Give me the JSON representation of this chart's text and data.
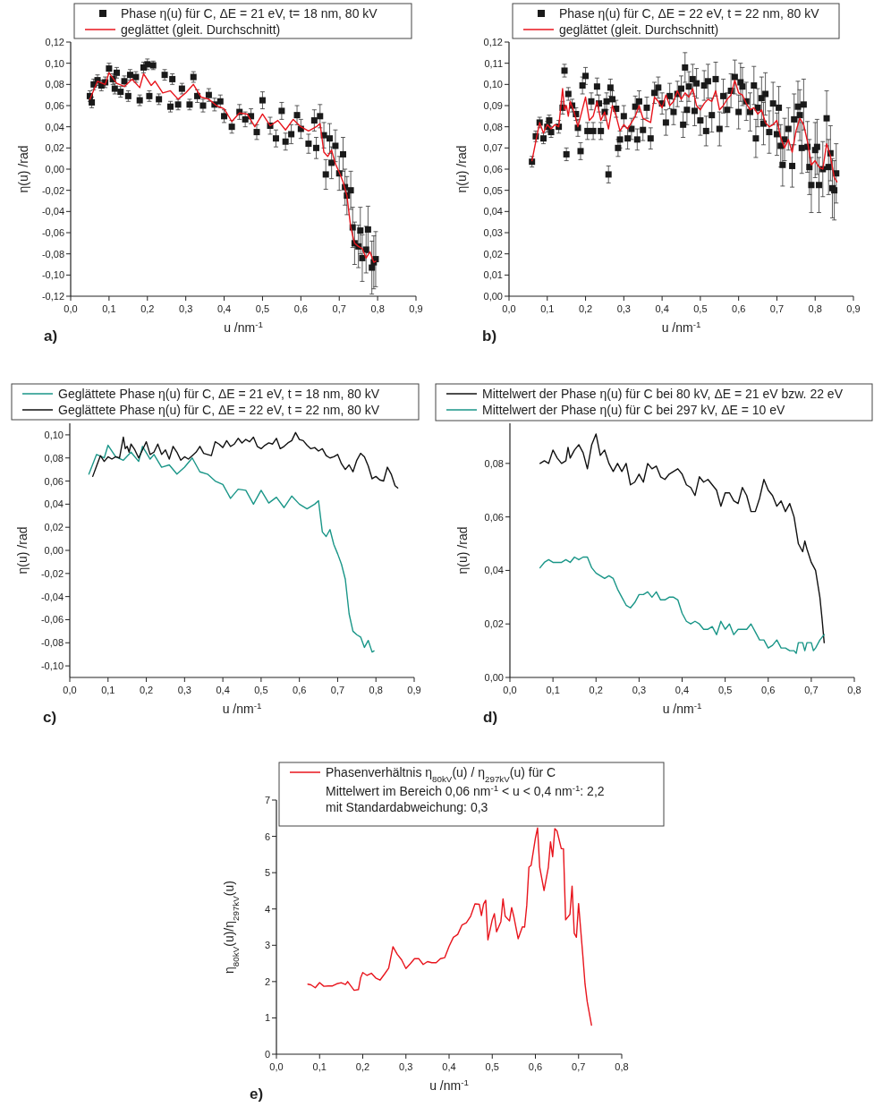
{
  "chart_data": [
    {
      "type": "scatter",
      "xlabel": "u /nm$^{-1}$",
      "ylabel": "η(u) /rad",
      "legend": "top",
      "annotations": [
        "a)"
      ],
      "xlim": [
        0,
        0.9
      ],
      "ylim": [
        -0.12,
        0.12
      ],
      "xticks": [
        {
          "value": 0,
          "label": "0,0"
        },
        {
          "value": 0.1,
          "label": "0,1"
        },
        {
          "value": 0.2,
          "label": "0,2"
        },
        {
          "value": 0.3,
          "label": "0,3"
        },
        {
          "value": 0.4,
          "label": "0,4"
        },
        {
          "value": 0.5,
          "label": "0,5"
        },
        {
          "value": 0.6,
          "label": "0,6"
        },
        {
          "value": 0.7,
          "label": "0,7"
        },
        {
          "value": 0.8,
          "label": "0,8"
        },
        {
          "value": 0.9,
          "label": "0,9"
        }
      ],
      "yticks": [
        {
          "value": -0.12,
          "label": "-0,12"
        },
        {
          "value": -0.1,
          "label": "-0,10"
        },
        {
          "value": -0.08,
          "label": "-0,08"
        },
        {
          "value": -0.06,
          "label": "-0,06"
        },
        {
          "value": -0.04,
          "label": "-0,04"
        },
        {
          "value": -0.02,
          "label": "-0,02"
        },
        {
          "value": 0,
          "label": "0,00"
        },
        {
          "value": 0.02,
          "label": "0,02"
        },
        {
          "value": 0.04,
          "label": "0,04"
        },
        {
          "value": 0.06,
          "label": "0,06"
        },
        {
          "value": 0.08,
          "label": "0,08"
        },
        {
          "value": 0.1,
          "label": "0,10"
        },
        {
          "value": 0.12,
          "label": "0,12"
        }
      ],
      "series": [
        {
          "name": "Phase η(u) für C, ΔE = 21 eV, t= 18 nm, 80 kV",
          "color": "#1a1a1a",
          "type": "scatter",
          "marker": "square",
          "x": [
            0.05,
            0.055,
            0.06,
            0.07,
            0.08,
            0.09,
            0.1,
            0.11,
            0.115,
            0.12,
            0.13,
            0.14,
            0.15,
            0.155,
            0.17,
            0.18,
            0.19,
            0.2,
            0.205,
            0.215,
            0.23,
            0.245,
            0.26,
            0.265,
            0.28,
            0.29,
            0.31,
            0.32,
            0.33,
            0.345,
            0.36,
            0.375,
            0.39,
            0.4,
            0.42,
            0.44,
            0.455,
            0.47,
            0.485,
            0.5,
            0.52,
            0.535,
            0.55,
            0.56,
            0.575,
            0.59,
            0.6,
            0.62,
            0.635,
            0.64,
            0.65,
            0.66,
            0.665,
            0.675,
            0.68,
            0.69,
            0.7,
            0.71,
            0.715,
            0.72,
            0.73,
            0.735,
            0.74,
            0.75,
            0.755,
            0.76,
            0.77,
            0.775,
            0.785,
            0.79,
            0.795
          ],
          "values": [
            0.069,
            0.063,
            0.08,
            0.084,
            0.079,
            0.082,
            0.095,
            0.085,
            0.076,
            0.091,
            0.073,
            0.083,
            0.069,
            0.089,
            0.087,
            0.065,
            0.096,
            0.099,
            0.069,
            0.098,
            0.066,
            0.089,
            0.059,
            0.085,
            0.061,
            0.076,
            0.061,
            0.087,
            0.069,
            0.06,
            0.07,
            0.061,
            0.064,
            0.05,
            0.04,
            0.054,
            0.047,
            0.05,
            0.035,
            0.065,
            0.041,
            0.029,
            0.055,
            0.026,
            0.033,
            0.051,
            0.038,
            0.024,
            0.046,
            0.02,
            0.05,
            0.032,
            -0.005,
            0.029,
            0.006,
            0.022,
            -0.004,
            0.014,
            -0.017,
            -0.025,
            -0.02,
            -0.055,
            -0.07,
            -0.073,
            -0.058,
            -0.084,
            -0.076,
            -0.057,
            -0.093,
            -0.088,
            -0.085
          ],
          "errors": [
            0.005,
            0.005,
            0.005,
            0.005,
            0.005,
            0.005,
            0.005,
            0.005,
            0.005,
            0.005,
            0.005,
            0.005,
            0.005,
            0.005,
            0.005,
            0.005,
            0.005,
            0.005,
            0.005,
            0.004,
            0.005,
            0.005,
            0.005,
            0.005,
            0.005,
            0.005,
            0.005,
            0.005,
            0.006,
            0.006,
            0.006,
            0.006,
            0.006,
            0.006,
            0.006,
            0.007,
            0.007,
            0.007,
            0.007,
            0.008,
            0.008,
            0.008,
            0.008,
            0.008,
            0.009,
            0.009,
            0.009,
            0.009,
            0.01,
            0.01,
            0.011,
            0.012,
            0.014,
            0.014,
            0.015,
            0.015,
            0.016,
            0.016,
            0.017,
            0.018,
            0.018,
            0.019,
            0.02,
            0.02,
            0.022,
            0.022,
            0.022,
            0.022,
            0.025,
            0.025,
            0.026
          ]
        },
        {
          "name": "geglättet (gleit. Durchschnitt)",
          "color": "#e8141c",
          "type": "line",
          "x": [
            0.05,
            0.07,
            0.09,
            0.1,
            0.12,
            0.14,
            0.16,
            0.18,
            0.19,
            0.21,
            0.22,
            0.24,
            0.26,
            0.28,
            0.3,
            0.32,
            0.34,
            0.36,
            0.38,
            0.4,
            0.42,
            0.44,
            0.46,
            0.48,
            0.5,
            0.52,
            0.54,
            0.56,
            0.58,
            0.6,
            0.62,
            0.64,
            0.65,
            0.66,
            0.67,
            0.68,
            0.69,
            0.7,
            0.71,
            0.72,
            0.73,
            0.74,
            0.75,
            0.76,
            0.77,
            0.78,
            0.79,
            0.795
          ],
          "values": [
            0.066,
            0.083,
            0.08,
            0.091,
            0.081,
            0.078,
            0.085,
            0.077,
            0.09,
            0.079,
            0.083,
            0.072,
            0.074,
            0.066,
            0.072,
            0.08,
            0.068,
            0.066,
            0.06,
            0.057,
            0.045,
            0.053,
            0.052,
            0.04,
            0.052,
            0.041,
            0.046,
            0.037,
            0.047,
            0.04,
            0.036,
            0.04,
            0.043,
            0.016,
            0.012,
            0.018,
            0.005,
            -0.003,
            -0.012,
            -0.025,
            -0.055,
            -0.07,
            -0.073,
            -0.075,
            -0.084,
            -0.078,
            -0.088,
            -0.087
          ]
        }
      ]
    },
    {
      "type": "scatter",
      "xlabel": "u /nm$^{-1}$",
      "ylabel": "η(u) /rad",
      "legend": "top",
      "annotations": [
        "b)"
      ],
      "xlim": [
        0,
        0.9
      ],
      "ylim": [
        0,
        0.12
      ],
      "xticks": [
        {
          "value": 0,
          "label": "0,0"
        },
        {
          "value": 0.1,
          "label": "0,1"
        },
        {
          "value": 0.2,
          "label": "0,2"
        },
        {
          "value": 0.3,
          "label": "0,3"
        },
        {
          "value": 0.4,
          "label": "0,4"
        },
        {
          "value": 0.5,
          "label": "0,5"
        },
        {
          "value": 0.6,
          "label": "0,6"
        },
        {
          "value": 0.7,
          "label": "0,7"
        },
        {
          "value": 0.8,
          "label": "0,8"
        },
        {
          "value": 0.9,
          "label": "0,9"
        }
      ],
      "yticks": [
        {
          "value": 0,
          "label": "0,00"
        },
        {
          "value": 0.01,
          "label": "0,01"
        },
        {
          "value": 0.02,
          "label": "0,02"
        },
        {
          "value": 0.03,
          "label": "0,03"
        },
        {
          "value": 0.04,
          "label": "0,04"
        },
        {
          "value": 0.05,
          "label": "0,05"
        },
        {
          "value": 0.06,
          "label": "0,06"
        },
        {
          "value": 0.07,
          "label": "0,07"
        },
        {
          "value": 0.08,
          "label": "0,08"
        },
        {
          "value": 0.09,
          "label": "0,09"
        },
        {
          "value": 0.1,
          "label": "0,10"
        },
        {
          "value": 0.11,
          "label": "0,11"
        },
        {
          "value": 0.12,
          "label": "0,12"
        }
      ],
      "series": [
        {
          "name": "Phase η(u) für C, ΔE = 22 eV, t = 22 nm, 80 kV",
          "color": "#1a1a1a",
          "type": "scatter",
          "marker": "square",
          "x": [
            0.06,
            0.07,
            0.08,
            0.09,
            0.1,
            0.105,
            0.11,
            0.13,
            0.14,
            0.145,
            0.15,
            0.155,
            0.165,
            0.175,
            0.18,
            0.187,
            0.192,
            0.2,
            0.205,
            0.215,
            0.22,
            0.23,
            0.235,
            0.24,
            0.25,
            0.255,
            0.26,
            0.265,
            0.27,
            0.28,
            0.285,
            0.29,
            0.3,
            0.31,
            0.32,
            0.33,
            0.335,
            0.34,
            0.35,
            0.36,
            0.37,
            0.38,
            0.39,
            0.4,
            0.41,
            0.42,
            0.43,
            0.44,
            0.45,
            0.455,
            0.46,
            0.465,
            0.47,
            0.48,
            0.485,
            0.49,
            0.5,
            0.51,
            0.515,
            0.52,
            0.53,
            0.54,
            0.55,
            0.56,
            0.57,
            0.58,
            0.59,
            0.6,
            0.605,
            0.61,
            0.62,
            0.63,
            0.64,
            0.645,
            0.65,
            0.66,
            0.665,
            0.67,
            0.68,
            0.69,
            0.7,
            0.705,
            0.71,
            0.715,
            0.72,
            0.73,
            0.74,
            0.745,
            0.755,
            0.76,
            0.765,
            0.77,
            0.78,
            0.785,
            0.79,
            0.8,
            0.805,
            0.81,
            0.82,
            0.83,
            0.835,
            0.84,
            0.845,
            0.85,
            0.855
          ],
          "values": [
            0.0635,
            0.0755,
            0.082,
            0.0745,
            0.08,
            0.083,
            0.0775,
            0.08,
            0.089,
            0.1065,
            0.067,
            0.0955,
            0.09,
            0.086,
            0.0795,
            0.0685,
            0.0995,
            0.104,
            0.078,
            0.092,
            0.078,
            0.099,
            0.091,
            0.078,
            0.087,
            0.092,
            0.0575,
            0.0985,
            0.093,
            0.0885,
            0.07,
            0.074,
            0.085,
            0.0745,
            0.079,
            0.0895,
            0.074,
            0.092,
            0.0785,
            0.089,
            0.0745,
            0.096,
            0.0985,
            0.091,
            0.082,
            0.0945,
            0.087,
            0.0955,
            0.098,
            0.081,
            0.108,
            0.088,
            0.099,
            0.1025,
            0.0875,
            0.1005,
            0.083,
            0.0995,
            0.078,
            0.1015,
            0.0855,
            0.1025,
            0.079,
            0.0945,
            0.088,
            0.097,
            0.1035,
            0.087,
            0.101,
            0.099,
            0.092,
            0.087,
            0.0995,
            0.0745,
            0.089,
            0.0935,
            0.0815,
            0.0955,
            0.0775,
            0.091,
            0.0765,
            0.089,
            0.071,
            0.062,
            0.074,
            0.079,
            0.0615,
            0.0835,
            0.0895,
            0.0855,
            0.07,
            0.0905,
            0.0705,
            0.061,
            0.0525,
            0.069,
            0.0705,
            0.0525,
            0.06,
            0.084,
            0.061,
            0.0675,
            0.051,
            0.05,
            0.058
          ],
          "errors": [
            0.0025,
            0.0025,
            0.0025,
            0.0025,
            0.0025,
            0.0025,
            0.0025,
            0.003,
            0.003,
            0.003,
            0.003,
            0.003,
            0.003,
            0.003,
            0.004,
            0.004,
            0.004,
            0.004,
            0.004,
            0.004,
            0.004,
            0.004,
            0.004,
            0.004,
            0.004,
            0.004,
            0.004,
            0.004,
            0.004,
            0.004,
            0.004,
            0.004,
            0.005,
            0.005,
            0.005,
            0.005,
            0.005,
            0.005,
            0.005,
            0.005,
            0.005,
            0.005,
            0.005,
            0.005,
            0.006,
            0.006,
            0.006,
            0.006,
            0.006,
            0.006,
            0.007,
            0.007,
            0.007,
            0.007,
            0.007,
            0.007,
            0.007,
            0.007,
            0.007,
            0.008,
            0.008,
            0.008,
            0.008,
            0.008,
            0.008,
            0.008,
            0.008,
            0.008,
            0.009,
            0.009,
            0.009,
            0.009,
            0.009,
            0.009,
            0.009,
            0.01,
            0.01,
            0.01,
            0.01,
            0.01,
            0.01,
            0.01,
            0.01,
            0.01,
            0.01,
            0.01,
            0.01,
            0.012,
            0.012,
            0.012,
            0.012,
            0.012,
            0.012,
            0.013,
            0.013,
            0.013,
            0.013,
            0.013,
            0.013,
            0.013,
            0.013,
            0.013,
            0.014,
            0.014,
            0.014
          ]
        },
        {
          "name": "geglättet (gleit. Durchschnitt)",
          "color": "#e8141c",
          "type": "line",
          "x": [
            0.06,
            0.07,
            0.08,
            0.09,
            0.1,
            0.11,
            0.12,
            0.13,
            0.14,
            0.145,
            0.15,
            0.155,
            0.16,
            0.17,
            0.18,
            0.19,
            0.2,
            0.21,
            0.22,
            0.23,
            0.24,
            0.25,
            0.26,
            0.27,
            0.28,
            0.29,
            0.3,
            0.31,
            0.32,
            0.33,
            0.34,
            0.35,
            0.36,
            0.37,
            0.38,
            0.39,
            0.4,
            0.41,
            0.42,
            0.43,
            0.44,
            0.45,
            0.46,
            0.47,
            0.48,
            0.49,
            0.5,
            0.51,
            0.52,
            0.53,
            0.54,
            0.55,
            0.56,
            0.57,
            0.58,
            0.59,
            0.6,
            0.61,
            0.62,
            0.63,
            0.64,
            0.65,
            0.66,
            0.67,
            0.68,
            0.69,
            0.7,
            0.71,
            0.72,
            0.73,
            0.74,
            0.75,
            0.76,
            0.77,
            0.78,
            0.79,
            0.8,
            0.81,
            0.82,
            0.83,
            0.84,
            0.85,
            0.857
          ],
          "values": [
            0.064,
            0.073,
            0.082,
            0.077,
            0.081,
            0.079,
            0.081,
            0.08,
            0.098,
            0.088,
            0.09,
            0.085,
            0.092,
            0.087,
            0.08,
            0.087,
            0.094,
            0.083,
            0.085,
            0.092,
            0.083,
            0.087,
            0.079,
            0.09,
            0.085,
            0.078,
            0.081,
            0.079,
            0.082,
            0.085,
            0.09,
            0.084,
            0.083,
            0.082,
            0.094,
            0.092,
            0.089,
            0.095,
            0.09,
            0.092,
            0.097,
            0.093,
            0.096,
            0.094,
            0.098,
            0.09,
            0.088,
            0.091,
            0.093,
            0.092,
            0.097,
            0.088,
            0.09,
            0.093,
            0.095,
            0.102,
            0.096,
            0.095,
            0.091,
            0.088,
            0.089,
            0.086,
            0.088,
            0.082,
            0.08,
            0.081,
            0.083,
            0.075,
            0.07,
            0.074,
            0.068,
            0.078,
            0.084,
            0.081,
            0.073,
            0.062,
            0.064,
            0.061,
            0.06,
            0.072,
            0.066,
            0.056,
            0.054
          ]
        }
      ]
    },
    {
      "type": "line",
      "xlabel": "u /nm$^{-1}$",
      "ylabel": "η(u) /rad",
      "legend": "top",
      "annotations": [
        "c)"
      ],
      "xlim": [
        0,
        0.9
      ],
      "ylim": [
        -0.11,
        0.11
      ],
      "xticks": [
        {
          "value": 0,
          "label": "0,0"
        },
        {
          "value": 0.1,
          "label": "0,1"
        },
        {
          "value": 0.2,
          "label": "0,2"
        },
        {
          "value": 0.3,
          "label": "0,3"
        },
        {
          "value": 0.4,
          "label": "0,4"
        },
        {
          "value": 0.5,
          "label": "0,5"
        },
        {
          "value": 0.6,
          "label": "0,6"
        },
        {
          "value": 0.7,
          "label": "0,7"
        },
        {
          "value": 0.8,
          "label": "0,8"
        },
        {
          "value": 0.9,
          "label": "0,9"
        }
      ],
      "yticks": [
        {
          "value": -0.1,
          "label": "-0,10"
        },
        {
          "value": -0.08,
          "label": "-0,08"
        },
        {
          "value": -0.06,
          "label": "-0,06"
        },
        {
          "value": -0.04,
          "label": "-0,04"
        },
        {
          "value": -0.02,
          "label": "-0,02"
        },
        {
          "value": 0,
          "label": "0,00"
        },
        {
          "value": 0.02,
          "label": "0,02"
        },
        {
          "value": 0.04,
          "label": "0,04"
        },
        {
          "value": 0.06,
          "label": "0,06"
        },
        {
          "value": 0.08,
          "label": "0,08"
        },
        {
          "value": 0.1,
          "label": "0,10"
        }
      ],
      "series": [
        {
          "name": "Geglättete Phase η(u) für C, ΔE = 21 eV, t = 18 nm, 80 kV",
          "color": "#1a9688",
          "x": [
            0.05,
            0.07,
            0.09,
            0.1,
            0.12,
            0.14,
            0.16,
            0.18,
            0.19,
            0.21,
            0.22,
            0.24,
            0.26,
            0.28,
            0.3,
            0.32,
            0.34,
            0.36,
            0.38,
            0.4,
            0.42,
            0.44,
            0.46,
            0.48,
            0.5,
            0.52,
            0.54,
            0.56,
            0.58,
            0.6,
            0.62,
            0.64,
            0.65,
            0.66,
            0.67,
            0.68,
            0.69,
            0.7,
            0.71,
            0.72,
            0.73,
            0.74,
            0.75,
            0.76,
            0.77,
            0.78,
            0.79,
            0.795
          ],
          "values": [
            0.066,
            0.083,
            0.08,
            0.091,
            0.081,
            0.078,
            0.085,
            0.077,
            0.09,
            0.079,
            0.083,
            0.072,
            0.074,
            0.066,
            0.072,
            0.08,
            0.068,
            0.066,
            0.06,
            0.057,
            0.045,
            0.053,
            0.052,
            0.04,
            0.052,
            0.041,
            0.046,
            0.037,
            0.047,
            0.04,
            0.036,
            0.04,
            0.043,
            0.016,
            0.012,
            0.018,
            0.005,
            -0.003,
            -0.012,
            -0.025,
            -0.055,
            -0.07,
            -0.073,
            -0.075,
            -0.084,
            -0.078,
            -0.088,
            -0.087
          ]
        },
        {
          "name": "Geglättete Phase η(u) für C, ΔE = 22 eV, t = 22 nm, 80 kV",
          "color": "#111111",
          "x": [
            0.06,
            0.07,
            0.08,
            0.09,
            0.1,
            0.11,
            0.12,
            0.13,
            0.14,
            0.145,
            0.15,
            0.155,
            0.16,
            0.17,
            0.18,
            0.19,
            0.2,
            0.21,
            0.22,
            0.23,
            0.24,
            0.25,
            0.26,
            0.27,
            0.28,
            0.29,
            0.3,
            0.31,
            0.32,
            0.33,
            0.34,
            0.35,
            0.36,
            0.37,
            0.38,
            0.39,
            0.4,
            0.41,
            0.42,
            0.43,
            0.44,
            0.45,
            0.46,
            0.47,
            0.48,
            0.49,
            0.5,
            0.51,
            0.52,
            0.53,
            0.54,
            0.55,
            0.56,
            0.57,
            0.58,
            0.59,
            0.6,
            0.61,
            0.62,
            0.63,
            0.64,
            0.65,
            0.66,
            0.67,
            0.68,
            0.69,
            0.7,
            0.71,
            0.72,
            0.73,
            0.74,
            0.75,
            0.76,
            0.77,
            0.78,
            0.79,
            0.8,
            0.81,
            0.82,
            0.83,
            0.84,
            0.85,
            0.857
          ],
          "values": [
            0.064,
            0.073,
            0.082,
            0.077,
            0.081,
            0.079,
            0.081,
            0.08,
            0.098,
            0.088,
            0.09,
            0.085,
            0.092,
            0.087,
            0.08,
            0.087,
            0.094,
            0.083,
            0.085,
            0.092,
            0.083,
            0.087,
            0.079,
            0.09,
            0.085,
            0.078,
            0.081,
            0.079,
            0.082,
            0.085,
            0.09,
            0.084,
            0.083,
            0.082,
            0.094,
            0.092,
            0.089,
            0.095,
            0.09,
            0.092,
            0.097,
            0.093,
            0.096,
            0.094,
            0.098,
            0.09,
            0.088,
            0.091,
            0.093,
            0.092,
            0.097,
            0.088,
            0.09,
            0.093,
            0.095,
            0.102,
            0.096,
            0.095,
            0.091,
            0.088,
            0.089,
            0.086,
            0.088,
            0.082,
            0.08,
            0.081,
            0.083,
            0.075,
            0.07,
            0.074,
            0.068,
            0.078,
            0.084,
            0.081,
            0.073,
            0.062,
            0.064,
            0.061,
            0.06,
            0.072,
            0.066,
            0.056,
            0.054
          ]
        }
      ]
    },
    {
      "type": "line",
      "xlabel": "u /nm$^{-1}$",
      "ylabel": "η(u) /rad",
      "legend": "top",
      "annotations": [
        "d)"
      ],
      "xlim": [
        0,
        0.8
      ],
      "ylim": [
        0,
        0.095
      ],
      "xticks": [
        {
          "value": 0,
          "label": "0,0"
        },
        {
          "value": 0.1,
          "label": "0,1"
        },
        {
          "value": 0.2,
          "label": "0,2"
        },
        {
          "value": 0.3,
          "label": "0,3"
        },
        {
          "value": 0.4,
          "label": "0,4"
        },
        {
          "value": 0.5,
          "label": "0,5"
        },
        {
          "value": 0.6,
          "label": "0,6"
        },
        {
          "value": 0.7,
          "label": "0,7"
        },
        {
          "value": 0.8,
          "label": "0,8"
        }
      ],
      "yticks": [
        {
          "value": 0,
          "label": "0,00"
        },
        {
          "value": 0.02,
          "label": "0,02"
        },
        {
          "value": 0.04,
          "label": "0,04"
        },
        {
          "value": 0.06,
          "label": "0,06"
        },
        {
          "value": 0.08,
          "label": "0,08"
        }
      ],
      "series": [
        {
          "name": "Mittelwert der Phase η(u) für C bei 80 kV, ΔE = 21 eV bzw. 22 eV",
          "color": "#111111",
          "x": [
            0.07,
            0.08,
            0.09,
            0.1,
            0.11,
            0.12,
            0.13,
            0.135,
            0.14,
            0.15,
            0.16,
            0.17,
            0.18,
            0.19,
            0.2,
            0.21,
            0.22,
            0.23,
            0.24,
            0.25,
            0.26,
            0.27,
            0.28,
            0.29,
            0.3,
            0.31,
            0.32,
            0.33,
            0.34,
            0.35,
            0.36,
            0.37,
            0.38,
            0.39,
            0.4,
            0.41,
            0.42,
            0.43,
            0.44,
            0.45,
            0.46,
            0.47,
            0.48,
            0.49,
            0.5,
            0.51,
            0.52,
            0.53,
            0.54,
            0.55,
            0.56,
            0.57,
            0.58,
            0.59,
            0.6,
            0.61,
            0.62,
            0.63,
            0.64,
            0.65,
            0.66,
            0.67,
            0.68,
            0.685,
            0.69,
            0.7,
            0.71,
            0.72,
            0.725,
            0.73
          ],
          "values": [
            0.08,
            0.081,
            0.08,
            0.085,
            0.082,
            0.08,
            0.081,
            0.086,
            0.082,
            0.085,
            0.087,
            0.084,
            0.078,
            0.087,
            0.091,
            0.083,
            0.085,
            0.08,
            0.077,
            0.08,
            0.077,
            0.08,
            0.072,
            0.073,
            0.076,
            0.073,
            0.08,
            0.078,
            0.079,
            0.075,
            0.074,
            0.076,
            0.077,
            0.078,
            0.076,
            0.072,
            0.071,
            0.068,
            0.075,
            0.073,
            0.074,
            0.072,
            0.07,
            0.064,
            0.069,
            0.069,
            0.066,
            0.065,
            0.071,
            0.068,
            0.062,
            0.062,
            0.067,
            0.074,
            0.07,
            0.068,
            0.064,
            0.066,
            0.062,
            0.065,
            0.06,
            0.05,
            0.047,
            0.051,
            0.048,
            0.043,
            0.04,
            0.03,
            0.022,
            0.013
          ]
        },
        {
          "name": "Mittelwert der Phase η(u) für C bei 297 kV, ΔE = 10 eV",
          "color": "#1a9688",
          "x": [
            0.07,
            0.08,
            0.09,
            0.1,
            0.11,
            0.12,
            0.13,
            0.14,
            0.15,
            0.16,
            0.17,
            0.18,
            0.19,
            0.2,
            0.21,
            0.22,
            0.23,
            0.24,
            0.25,
            0.26,
            0.27,
            0.28,
            0.29,
            0.3,
            0.31,
            0.32,
            0.33,
            0.34,
            0.35,
            0.36,
            0.37,
            0.38,
            0.39,
            0.4,
            0.41,
            0.42,
            0.43,
            0.44,
            0.45,
            0.46,
            0.47,
            0.48,
            0.49,
            0.5,
            0.51,
            0.52,
            0.53,
            0.54,
            0.55,
            0.56,
            0.57,
            0.58,
            0.59,
            0.6,
            0.61,
            0.62,
            0.63,
            0.64,
            0.65,
            0.66,
            0.665,
            0.67,
            0.68,
            0.685,
            0.69,
            0.7,
            0.705,
            0.71,
            0.72,
            0.73
          ],
          "values": [
            0.041,
            0.043,
            0.044,
            0.043,
            0.043,
            0.043,
            0.044,
            0.043,
            0.045,
            0.044,
            0.045,
            0.045,
            0.041,
            0.039,
            0.038,
            0.037,
            0.038,
            0.037,
            0.033,
            0.03,
            0.027,
            0.026,
            0.028,
            0.031,
            0.031,
            0.032,
            0.03,
            0.032,
            0.029,
            0.029,
            0.03,
            0.03,
            0.029,
            0.024,
            0.021,
            0.02,
            0.021,
            0.02,
            0.018,
            0.018,
            0.019,
            0.016,
            0.021,
            0.018,
            0.02,
            0.016,
            0.018,
            0.018,
            0.018,
            0.02,
            0.017,
            0.014,
            0.014,
            0.011,
            0.012,
            0.014,
            0.011,
            0.011,
            0.01,
            0.01,
            0.009,
            0.013,
            0.013,
            0.01,
            0.013,
            0.013,
            0.01,
            0.011,
            0.014,
            0.016
          ]
        }
      ]
    },
    {
      "type": "line",
      "xlabel": "u /nm$^{-1}$",
      "ylabel": "η$_{80kV}$(u)/η$_{297kV}$(u)",
      "legend": "top",
      "annotations": [
        "Mittelwert im Bereich 0,06 nm$^{-1}$ < u < 0,4 nm$^{-1}$: 2,2",
        "mit Standardabweichung: 0,3",
        "e)"
      ],
      "xlim": [
        0,
        0.8
      ],
      "ylim": [
        0,
        7
      ],
      "xticks": [
        {
          "value": 0,
          "label": "0,0"
        },
        {
          "value": 0.1,
          "label": "0,1"
        },
        {
          "value": 0.2,
          "label": "0,2"
        },
        {
          "value": 0.3,
          "label": "0,3"
        },
        {
          "value": 0.4,
          "label": "0,4"
        },
        {
          "value": 0.5,
          "label": "0,5"
        },
        {
          "value": 0.6,
          "label": "0,6"
        },
        {
          "value": 0.7,
          "label": "0,7"
        },
        {
          "value": 0.8,
          "label": "0,8"
        }
      ],
      "yticks": [
        0,
        1,
        2,
        3,
        4,
        5,
        6,
        7
      ],
      "series": [
        {
          "name": "Phasenverhältnis η$_{80kV}$(u) / η$_{297kV}$(u) für C",
          "color": "#e8141c",
          "x": [
            0.073,
            0.08,
            0.09,
            0.1,
            0.11,
            0.12,
            0.13,
            0.14,
            0.15,
            0.16,
            0.165,
            0.17,
            0.18,
            0.19,
            0.195,
            0.2,
            0.21,
            0.22,
            0.23,
            0.24,
            0.25,
            0.26,
            0.27,
            0.28,
            0.29,
            0.3,
            0.31,
            0.32,
            0.33,
            0.34,
            0.35,
            0.36,
            0.37,
            0.38,
            0.39,
            0.4,
            0.41,
            0.42,
            0.43,
            0.44,
            0.45,
            0.46,
            0.47,
            0.475,
            0.48,
            0.485,
            0.49,
            0.5,
            0.505,
            0.51,
            0.52,
            0.525,
            0.53,
            0.54,
            0.545,
            0.55,
            0.56,
            0.57,
            0.575,
            0.58,
            0.585,
            0.59,
            0.6,
            0.605,
            0.61,
            0.62,
            0.63,
            0.635,
            0.64,
            0.645,
            0.65,
            0.66,
            0.665,
            0.67,
            0.68,
            0.685,
            0.69,
            0.695,
            0.7,
            0.71,
            0.715,
            0.72,
            0.73
          ],
          "values": [
            1.93,
            1.91,
            1.83,
            1.97,
            1.87,
            1.88,
            1.88,
            1.94,
            1.97,
            1.92,
            2.0,
            1.92,
            1.76,
            1.78,
            2.1,
            2.25,
            2.17,
            2.23,
            2.1,
            2.04,
            2.2,
            2.37,
            2.96,
            2.75,
            2.6,
            2.36,
            2.49,
            2.63,
            2.63,
            2.47,
            2.55,
            2.52,
            2.52,
            2.63,
            2.66,
            2.97,
            3.22,
            3.3,
            3.56,
            3.62,
            3.8,
            4.14,
            4.13,
            3.82,
            4.14,
            4.24,
            3.15,
            3.7,
            3.87,
            3.37,
            3.65,
            4.28,
            3.8,
            3.67,
            4.04,
            3.79,
            3.18,
            3.51,
            3.5,
            4.1,
            5.15,
            5.2,
            5.95,
            6.23,
            5.15,
            4.51,
            5.15,
            5.85,
            5.44,
            6.21,
            6.15,
            5.66,
            5.66,
            3.7,
            3.85,
            4.63,
            3.33,
            3.22,
            4.15,
            2.7,
            1.93,
            1.45,
            0.8
          ]
        }
      ]
    }
  ]
}
